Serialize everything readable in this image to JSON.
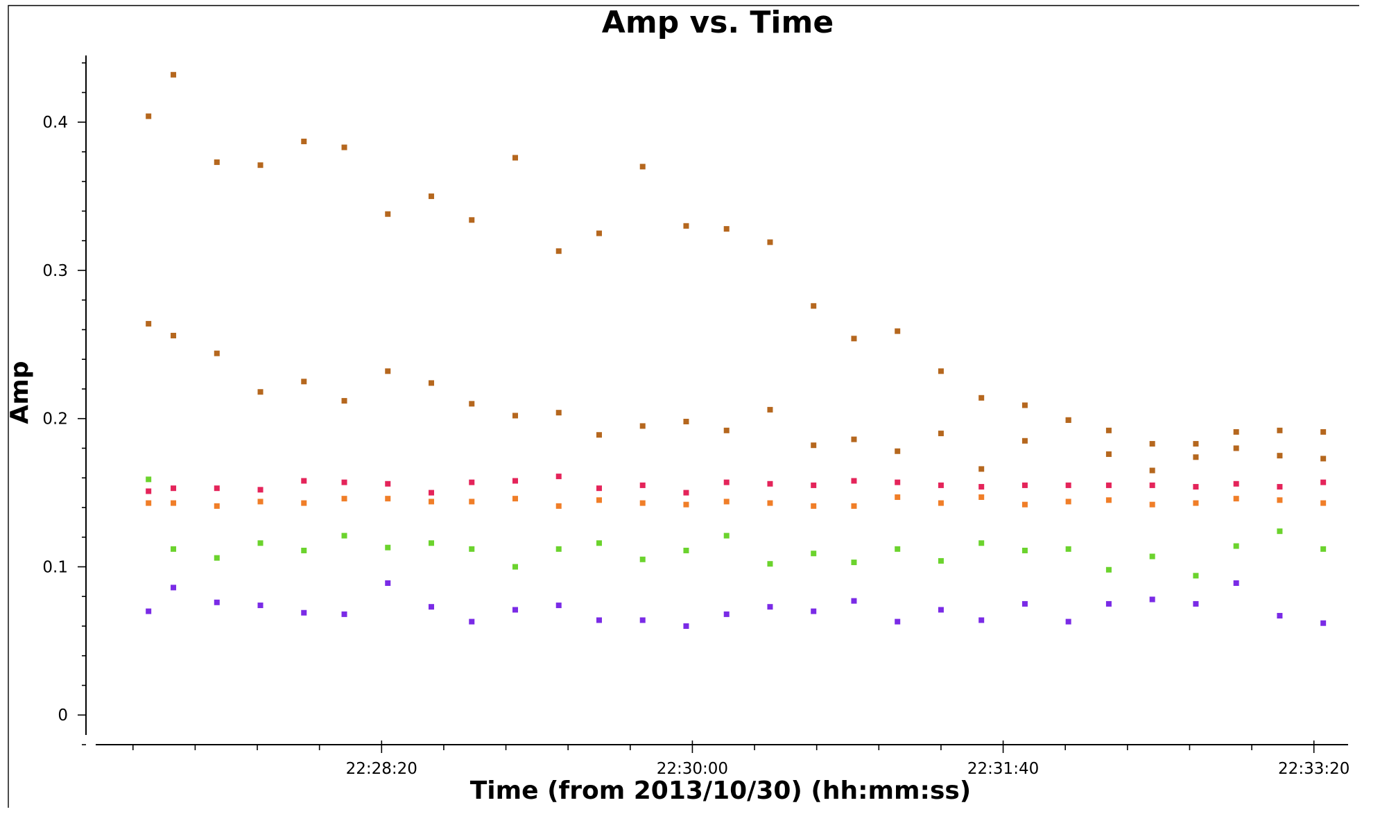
{
  "chart_data": {
    "type": "scatter",
    "title": "Amp vs. Time",
    "xlabel": "Time (from 2013/10/30) (hh:mm:ss)",
    "ylabel": "Amp",
    "xlim": [
      "22:26:48",
      "22:33:31"
    ],
    "ylim": [
      -0.02,
      0.445
    ],
    "x_ticks": [
      "22:28:20",
      "22:30:00",
      "22:31:40",
      "22:33:20"
    ],
    "y_ticks": [
      "0",
      "0.1",
      "0.2",
      "0.3",
      "0.4"
    ],
    "grid": false,
    "legend": "none",
    "times": [
      "22:27:05",
      "22:27:13",
      "22:27:27",
      "22:27:41",
      "22:27:55",
      "22:28:08",
      "22:28:22",
      "22:28:36",
      "22:28:49",
      "22:29:03",
      "22:29:17",
      "22:29:30",
      "22:29:44",
      "22:29:58",
      "22:30:11",
      "22:30:25",
      "22:30:39",
      "22:30:52",
      "22:31:06",
      "22:31:20",
      "22:31:33",
      "22:31:47",
      "22:32:01",
      "22:32:14",
      "22:32:28",
      "22:32:42",
      "22:32:55",
      "22:33:09",
      "22:33:23"
    ],
    "series": [
      {
        "color": "#b5671e",
        "values": [
          0.404,
          0.432,
          0.373,
          0.371,
          0.387,
          0.383,
          0.338,
          0.35,
          0.334,
          0.376,
          0.313,
          0.325,
          0.37,
          0.33,
          0.328,
          0.319,
          0.276,
          0.254,
          0.259,
          0.232,
          0.214,
          0.209,
          0.199,
          0.192,
          0.183,
          0.183,
          0.191,
          0.192,
          0.191
        ]
      },
      {
        "color": "#b5671e",
        "values": [
          0.264,
          0.256,
          0.244,
          0.218,
          0.225,
          0.212,
          0.232,
          0.224,
          0.21,
          0.202,
          0.204,
          0.189,
          0.195,
          0.198,
          0.192,
          0.206,
          0.182,
          0.186,
          0.178,
          0.19,
          0.166,
          0.185,
          0.199,
          0.176,
          0.165,
          0.174,
          0.18,
          0.175,
          0.173
        ]
      },
      {
        "color": "#e4245a",
        "values": [
          0.151,
          0.153,
          0.153,
          0.152,
          0.158,
          0.157,
          0.156,
          0.15,
          0.157,
          0.158,
          0.161,
          0.153,
          0.155,
          0.15,
          0.157,
          0.156,
          0.155,
          0.158,
          0.157,
          0.155,
          0.154,
          0.155,
          0.155,
          0.155,
          0.155,
          0.154,
          0.156,
          0.154,
          0.157
        ]
      },
      {
        "color": "#f07e28",
        "values": [
          0.143,
          0.143,
          0.141,
          0.144,
          0.143,
          0.146,
          0.146,
          0.144,
          0.144,
          0.146,
          0.141,
          0.145,
          0.143,
          0.142,
          0.144,
          0.143,
          0.141,
          0.141,
          0.147,
          0.143,
          0.147,
          0.142,
          0.144,
          0.145,
          0.142,
          0.143,
          0.146,
          0.145,
          0.143
        ]
      },
      {
        "color": "#6bd32d",
        "values": [
          0.159,
          0.112,
          0.106,
          0.116,
          0.111,
          0.121,
          0.113,
          0.116,
          0.112,
          0.1,
          0.112,
          0.116,
          0.105,
          0.111,
          0.121,
          0.102,
          0.109,
          0.103,
          0.112,
          0.104,
          0.116,
          0.111,
          0.112,
          0.098,
          0.107,
          0.094,
          0.114,
          0.124,
          0.112
        ]
      },
      {
        "color": "#7a2be6",
        "values": [
          0.07,
          0.086,
          0.076,
          0.074,
          0.069,
          0.068,
          0.089,
          0.073,
          0.063,
          0.071,
          0.074,
          0.064,
          0.064,
          0.06,
          0.068,
          0.073,
          0.07,
          0.077,
          0.063,
          0.071,
          0.064,
          0.075,
          0.063,
          0.075,
          0.078,
          0.075,
          0.089,
          0.067,
          0.062
        ]
      }
    ]
  }
}
